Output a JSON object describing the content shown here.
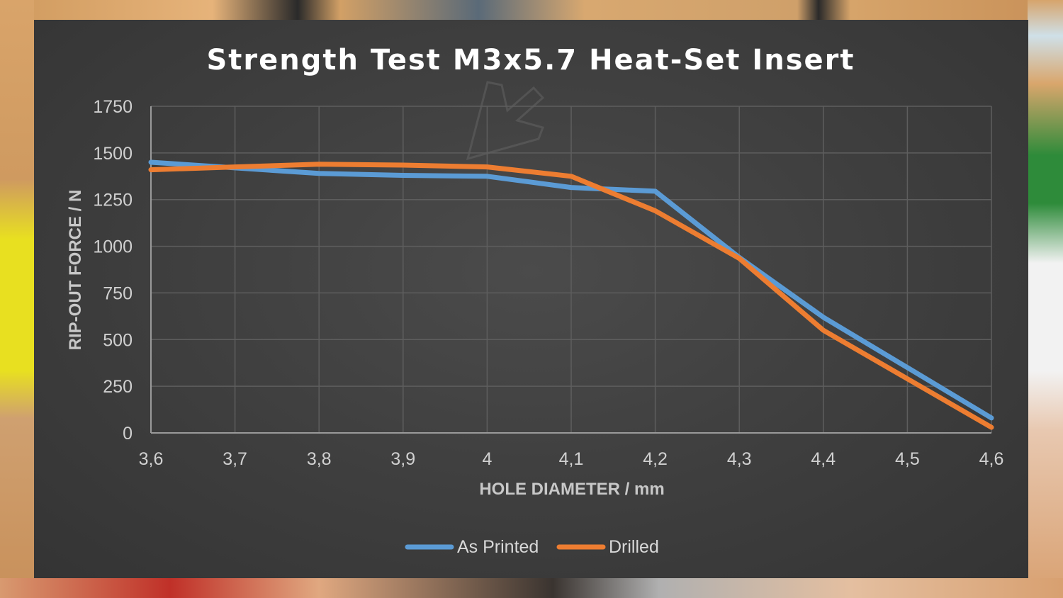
{
  "chart_data": {
    "type": "line",
    "title": "Strength Test M3x5.7 Heat-Set Insert",
    "xlabel": "HOLE DIAMETER / mm",
    "ylabel": "RIP-OUT FORCE / N",
    "x": [
      3.6,
      3.7,
      3.8,
      3.9,
      4.0,
      4.1,
      4.2,
      4.3,
      4.4,
      4.5,
      4.6
    ],
    "x_tick_labels": [
      "3,6",
      "3,7",
      "3,8",
      "3,9",
      "4",
      "4,1",
      "4,2",
      "4,3",
      "4,4",
      "4,5",
      "4,6"
    ],
    "y_ticks": [
      0,
      250,
      500,
      750,
      1000,
      1250,
      1500,
      1750
    ],
    "ylim": [
      0,
      1750
    ],
    "grid": true,
    "legend_position": "bottom",
    "series": [
      {
        "name": "As Printed",
        "color": "#5b9bd5",
        "values": [
          1450,
          1420,
          1390,
          1380,
          1375,
          1315,
          1295,
          940,
          620,
          350,
          80
        ]
      },
      {
        "name": "Drilled",
        "color": "#ed7d31",
        "values": [
          1410,
          1425,
          1440,
          1435,
          1425,
          1375,
          1190,
          935,
          550,
          290,
          30
        ]
      }
    ]
  }
}
